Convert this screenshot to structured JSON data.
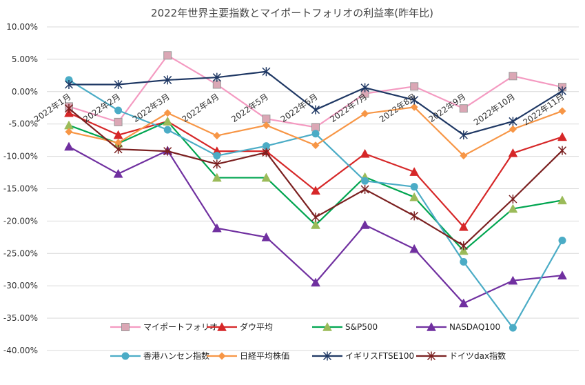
{
  "chart_data": {
    "type": "line",
    "title": "2022年世界主要指数とマイポートフォリオの利益率(昨年比)",
    "xlabel": "",
    "ylabel": "",
    "categories": [
      "2022年1月",
      "2022年2月",
      "2022年3月",
      "2022年4月",
      "2022年5月",
      "2022年6月",
      "2022年7月",
      "2022年8月",
      "2022年9月",
      "2022年10月",
      "2022年11月"
    ],
    "yticks": [
      "10.00%",
      "5.00%",
      "0.00%",
      "-5.00%",
      "-10.00%",
      "-15.00%",
      "-20.00%",
      "-25.00%",
      "-30.00%",
      "-35.00%",
      "-40.00%"
    ],
    "ylim": [
      -40,
      10
    ],
    "grid": true,
    "legend_position": "bottom",
    "series": [
      {
        "name": "マイポートフォリオ",
        "color": "#f49ac1",
        "marker": "square",
        "values": [
          -2.3,
          -4.7,
          5.6,
          1.1,
          -4.2,
          -5.5,
          -0.3,
          0.8,
          -2.6,
          2.4,
          0.7
        ]
      },
      {
        "name": "ダウ平均",
        "color": "#d62728",
        "marker": "triangle",
        "values": [
          -3.3,
          -6.7,
          -4.6,
          -9.2,
          -9.2,
          -15.3,
          -9.6,
          -12.4,
          -20.9,
          -9.5,
          -7.0
        ]
      },
      {
        "name": "S&P500",
        "color": "#00a550",
        "marker": "triangle-green",
        "values": [
          -5.2,
          -8.0,
          -4.6,
          -13.3,
          -13.3,
          -20.6,
          -13.2,
          -16.3,
          -24.6,
          -18.1,
          -16.8
        ]
      },
      {
        "name": "NASDAQ100",
        "color": "#7030a0",
        "marker": "triangle-purple",
        "values": [
          -8.5,
          -12.7,
          -9.1,
          -21.1,
          -22.5,
          -29.5,
          -20.6,
          -24.3,
          -32.7,
          -29.2,
          -28.4
        ]
      },
      {
        "name": "香港ハンセン指数",
        "color": "#4bacc6",
        "marker": "circle",
        "values": [
          1.8,
          -2.9,
          -5.9,
          -9.9,
          -8.4,
          -6.5,
          -13.8,
          -14.7,
          -26.3,
          -36.5,
          -23.0
        ]
      },
      {
        "name": "日経平均株価",
        "color": "#f79646",
        "marker": "diamond",
        "values": [
          -6.2,
          -7.9,
          -3.3,
          -6.8,
          -5.2,
          -8.3,
          -3.4,
          -2.4,
          -9.9,
          -5.8,
          -3.0
        ]
      },
      {
        "name": "イギリスFTSE100",
        "color": "#1f3864",
        "marker": "asterisk",
        "values": [
          1.1,
          1.1,
          1.8,
          2.2,
          3.1,
          -2.8,
          0.6,
          -1.3,
          -6.7,
          -4.6,
          0.1
        ]
      },
      {
        "name": "ドイツdax指数",
        "color": "#7b2020",
        "marker": "star",
        "values": [
          -2.6,
          -8.9,
          -9.2,
          -11.2,
          -9.4,
          -19.4,
          -15.1,
          -19.2,
          -23.8,
          -16.6,
          -9.1
        ]
      }
    ]
  }
}
